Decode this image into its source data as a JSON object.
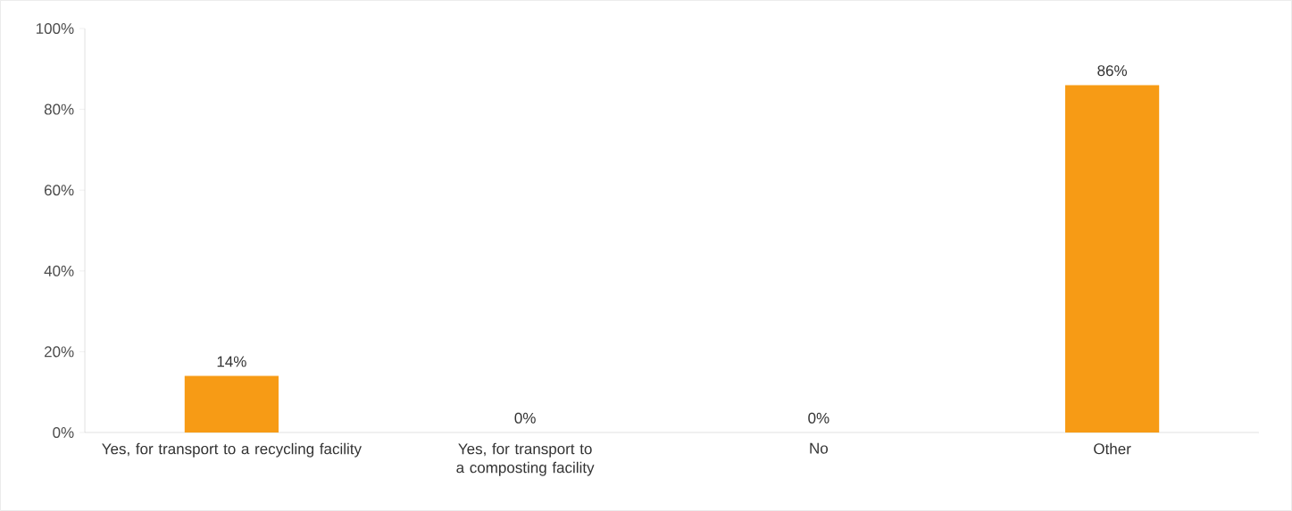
{
  "chart_data": {
    "type": "bar",
    "categories": [
      "Yes, for transport to a recycling facility",
      "Yes, for transport to a composting facility",
      "No",
      "Other"
    ],
    "values": [
      14,
      0,
      0,
      86
    ],
    "color": "#f79b15",
    "value_labels": [
      "14%",
      "0%",
      "0%",
      "86%"
    ],
    "ylim": [
      0,
      100
    ],
    "yticks": [
      {
        "value": 0,
        "label": "0%"
      },
      {
        "value": 20,
        "label": "20%"
      },
      {
        "value": 40,
        "label": "40%"
      },
      {
        "value": 60,
        "label": "60%"
      },
      {
        "value": 80,
        "label": "80%"
      },
      {
        "value": 100,
        "label": "100%"
      }
    ],
    "grid": false
  }
}
